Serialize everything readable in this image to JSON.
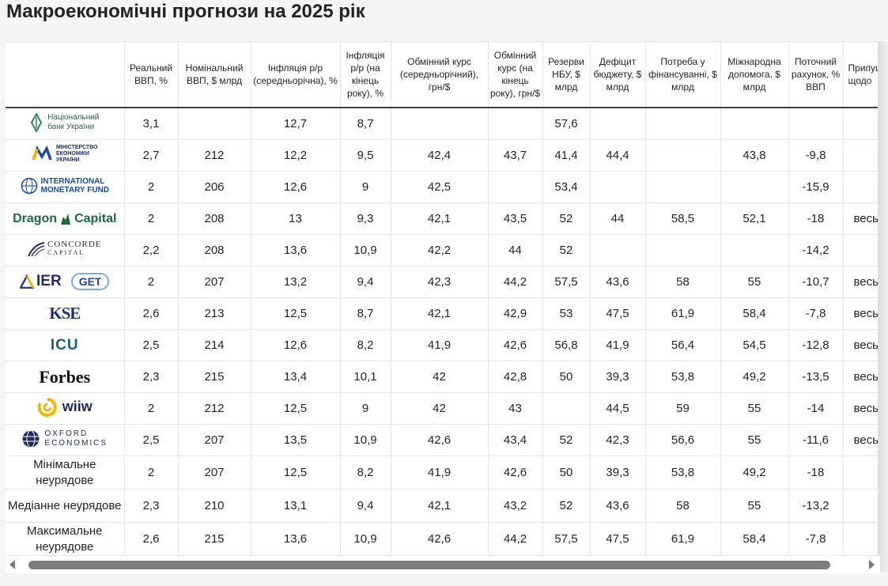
{
  "title": "Макроекономічні прогнози на 2025 рік",
  "headers": [
    "",
    "Реальний ВВП, %",
    "Номінальний ВВП, $ млрд",
    "Інфляція р/р (середньорічна), %",
    "Інфляція р/р (на кінець року), %",
    "Обмінний курс (середньорічний), грн/$",
    "Обмінний курс (на кінець року), грн/$",
    "Резерви НБУ, $ млрд",
    "Дефіцит бюджету, $ млрд",
    "Потреба у фінансуванні, $ млрд",
    "Міжнародна допомога, $ млрд",
    "Поточний рахунок, % ВВП",
    "Припущення щодо"
  ],
  "logos": {
    "nbu": {
      "line1": "Національний",
      "line2": "банк України",
      "icon": "nbu-leaf-icon"
    },
    "mineconomy": {
      "line1": "МІНІСТЕРСТВО",
      "line2": "ЕКОНОМІКИ",
      "line3": "УКРАЇНИ",
      "icon": "mineconomy-m-icon"
    },
    "imf": {
      "line1": "INTERNATIONAL",
      "line2": "MONETARY FUND",
      "icon": "imf-globe-icon"
    },
    "dragon": {
      "left": "Dragon",
      "right": "Capital",
      "icon": "dragon-icon"
    },
    "concorde": {
      "line1": "CONCORDE",
      "line2": "CAPITAL",
      "icon": "concorde-arc-icon"
    },
    "ier": {
      "text": "IER",
      "get": "GET",
      "icon": "ier-triangle-icon"
    },
    "kse": {
      "text": "KSE"
    },
    "icu": {
      "text": "ICU"
    },
    "forbes": {
      "text": "Forbes"
    },
    "wiiw": {
      "text": "wiiw",
      "icon": "wiiw-ring-icon"
    },
    "oxford": {
      "line1": "OXFORD",
      "line2": "ECONOMICS",
      "icon": "oxford-globe-icon"
    }
  },
  "rows": [
    {
      "values": [
        "3,1",
        "",
        "12,7",
        "8,7",
        "",
        "",
        "57,6",
        "",
        "",
        "",
        "",
        ""
      ]
    },
    {
      "values": [
        "2,7",
        "212",
        "12,2",
        "9,5",
        "42,4",
        "43,7",
        "41,4",
        "44,4",
        "",
        "43,8",
        "-9,8",
        ""
      ]
    },
    {
      "values": [
        "2",
        "206",
        "12,6",
        "9",
        "42,5",
        "",
        "53,4",
        "",
        "",
        "",
        "-15,9",
        ""
      ]
    },
    {
      "values": [
        "2",
        "208",
        "13",
        "9,3",
        "42,1",
        "43,5",
        "52",
        "44",
        "58,5",
        "52,1",
        "-18",
        "весь"
      ]
    },
    {
      "values": [
        "2,2",
        "208",
        "13,6",
        "10,9",
        "42,2",
        "44",
        "52",
        "",
        "",
        "",
        "-14,2",
        ""
      ]
    },
    {
      "values": [
        "2",
        "207",
        "13,2",
        "9,4",
        "42,3",
        "44,2",
        "57,5",
        "43,6",
        "58",
        "55",
        "-10,7",
        "весь"
      ]
    },
    {
      "values": [
        "2,6",
        "213",
        "12,5",
        "8,7",
        "42,1",
        "42,9",
        "53",
        "47,5",
        "61,9",
        "58,4",
        "-7,8",
        "весь"
      ]
    },
    {
      "values": [
        "2,5",
        "214",
        "12,6",
        "8,2",
        "41,9",
        "42,6",
        "56,8",
        "41,9",
        "56,4",
        "54,5",
        "-12,8",
        "весь"
      ]
    },
    {
      "values": [
        "2,3",
        "215",
        "13,4",
        "10,1",
        "42",
        "42,8",
        "50",
        "39,3",
        "53,8",
        "49,2",
        "-13,5",
        "весь"
      ]
    },
    {
      "values": [
        "2",
        "212",
        "12,5",
        "9",
        "42",
        "43",
        "",
        "44,5",
        "59",
        "55",
        "-14",
        "весь"
      ]
    },
    {
      "values": [
        "2,5",
        "207",
        "13,5",
        "10,9",
        "42,6",
        "43,4",
        "52",
        "42,3",
        "56,6",
        "55",
        "-11,6",
        "весь"
      ]
    }
  ],
  "summary": [
    {
      "label": "Мінімальне неурядове",
      "values": [
        "2",
        "207",
        "12,5",
        "8,2",
        "41,9",
        "42,6",
        "50",
        "39,3",
        "53,8",
        "49,2",
        "-18",
        ""
      ]
    },
    {
      "label": "Медіанне неурядове",
      "values": [
        "2,3",
        "210",
        "13,1",
        "9,4",
        "42,1",
        "43,2",
        "52",
        "43,6",
        "58",
        "55",
        "-13,2",
        ""
      ]
    },
    {
      "label": "Максимальне неурядове",
      "values": [
        "2,6",
        "215",
        "13,6",
        "10,9",
        "42,6",
        "44,2",
        "57,5",
        "47,5",
        "61,9",
        "58,4",
        "-7,8",
        ""
      ]
    }
  ],
  "colors": {
    "header_rule": "#444444",
    "grid": "#e4e4e4",
    "scroll_thumb": "#7d7d7d"
  }
}
